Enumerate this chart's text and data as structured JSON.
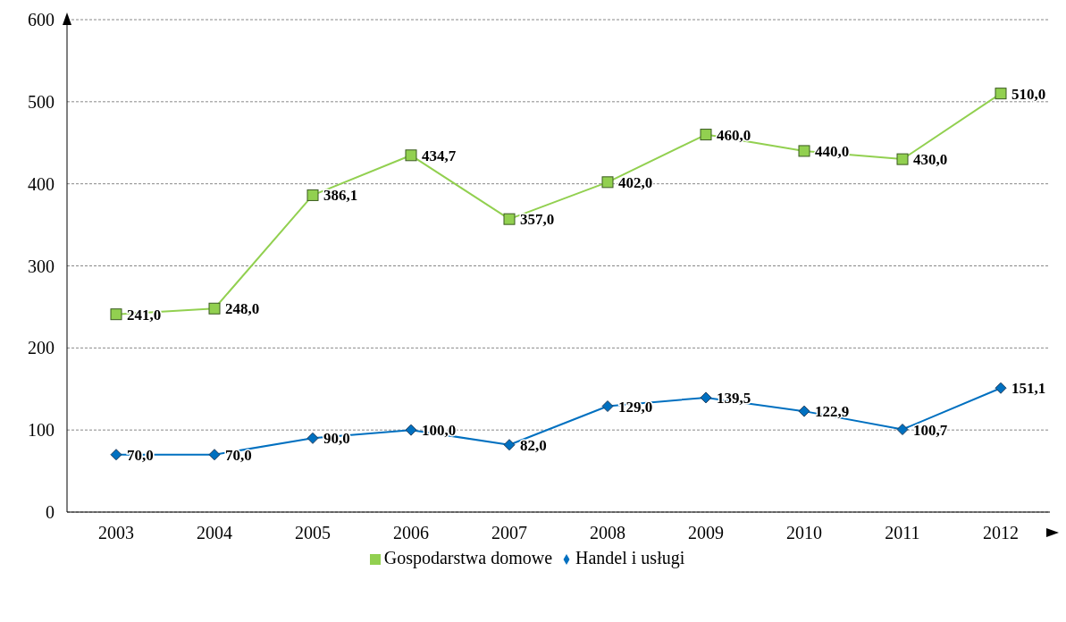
{
  "chart_data": {
    "type": "line",
    "categories": [
      "2003",
      "2004",
      "2005",
      "2006",
      "2007",
      "2008",
      "2009",
      "2010",
      "2011",
      "2012"
    ],
    "series": [
      {
        "name": "Handel i usługi",
        "color": "#0070c0",
        "marker": "diamond",
        "values": [
          70.0,
          70.0,
          90.0,
          100.0,
          82.0,
          129.0,
          139.5,
          122.9,
          100.7,
          151.1
        ],
        "value_labels": [
          "70,0",
          "70,0",
          "90,0",
          "100,0",
          "82,0",
          "129,0",
          "139,5",
          "122,9",
          "100,7",
          "151,1"
        ]
      },
      {
        "name": "Gospodarstwa domowe",
        "color": "#92d050",
        "marker": "square",
        "values": [
          241.0,
          248.0,
          386.1,
          434.7,
          357.0,
          402.0,
          460.0,
          440.0,
          430.0,
          510.0
        ],
        "value_labels": [
          "241,0",
          "248,0",
          "386,1",
          "434,7",
          "357,0",
          "402,0",
          "460,0",
          "440,0",
          "430,0",
          "510,0"
        ]
      }
    ],
    "ylim": [
      0,
      600
    ],
    "yticks": [
      0,
      100,
      200,
      300,
      400,
      500,
      600
    ],
    "grid": "y",
    "legend": "bottom"
  }
}
